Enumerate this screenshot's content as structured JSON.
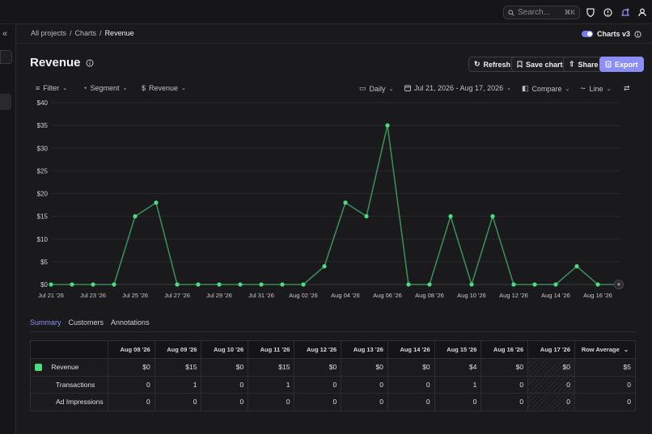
{
  "topbar": {
    "search_placeholder": "Search...",
    "search_shortcut": "⌘K"
  },
  "breadcrumb": {
    "items": [
      "All projects",
      "/",
      "Charts",
      "/"
    ],
    "current": "Revenue"
  },
  "version_toggle": {
    "label": "Charts v3",
    "on": true
  },
  "page": {
    "title": "Revenue"
  },
  "actions": {
    "refresh": "Refresh",
    "save": "Save chart",
    "share": "Share",
    "export": "Export"
  },
  "controls": {
    "filter": "Filter",
    "segment": "Segment",
    "metric": "Revenue",
    "interval": "Daily",
    "date_range": "Jul 21, 2026 - Aug 17, 2026",
    "compare": "Compare",
    "chart_type": "Line"
  },
  "colors": {
    "accent": "#8b8ff5",
    "series": "#4ade80",
    "line": "#3b8a5a"
  },
  "chart_data": {
    "type": "line",
    "x": [
      "Jul 21 '26",
      "Jul 22 '26",
      "Jul 23 '26",
      "Jul 24 '26",
      "Jul 25 '26",
      "Jul 26 '26",
      "Jul 27 '26",
      "Jul 28 '26",
      "Jul 29 '26",
      "Jul 30 '26",
      "Jul 31 '26",
      "Aug 01 '26",
      "Aug 02 '26",
      "Aug 03 '26",
      "Aug 04 '26",
      "Aug 05 '26",
      "Aug 06 '26",
      "Aug 07 '26",
      "Aug 08 '26",
      "Aug 09 '26",
      "Aug 10 '26",
      "Aug 11 '26",
      "Aug 12 '26",
      "Aug 13 '26",
      "Aug 14 '26",
      "Aug 15 '26",
      "Aug 16 '26",
      "Aug 17 '26"
    ],
    "x_tick_labels": [
      "Jul 21 '26",
      "Jul 23 '26",
      "Jul 25 '26",
      "Jul 27 '26",
      "Jul 29 '26",
      "Jul 31 '26",
      "Aug 02 '26",
      "Aug 04 '26",
      "Aug 06 '26",
      "Aug 08 '26",
      "Aug 10 '26",
      "Aug 12 '26",
      "Aug 14 '26",
      "Aug 16 '26"
    ],
    "series": [
      {
        "name": "Revenue",
        "values": [
          0,
          0,
          0,
          0,
          15,
          18,
          0,
          0,
          0,
          0,
          0,
          0,
          0,
          4,
          18,
          15,
          35,
          0,
          0,
          15,
          0,
          15,
          0,
          0,
          0,
          4,
          0,
          0
        ]
      }
    ],
    "y_ticks": [
      "$0",
      "$5",
      "$10",
      "$15",
      "$20",
      "$25",
      "$30",
      "$35",
      "$40"
    ],
    "ylim": [
      0,
      40
    ],
    "grid": true
  },
  "tabs": [
    "Summary",
    "Customers",
    "Annotations"
  ],
  "table": {
    "columns": [
      "Aug 08 '26",
      "Aug 09 '26",
      "Aug 10 '26",
      "Aug 11 '26",
      "Aug 12 '26",
      "Aug 13 '26",
      "Aug 14 '26",
      "Aug 15 '26",
      "Aug 16 '26",
      "Aug 17 '26"
    ],
    "last_column": "Row Average",
    "rows": [
      {
        "name": "Revenue",
        "values": [
          "$0",
          "$15",
          "$0",
          "$15",
          "$0",
          "$0",
          "$0",
          "$4",
          "$0",
          "$0"
        ],
        "average": "$5",
        "swatch": true
      },
      {
        "name": "Transactions",
        "values": [
          "0",
          "1",
          "0",
          "1",
          "0",
          "0",
          "0",
          "1",
          "0",
          "0"
        ],
        "average": "0"
      },
      {
        "name": "Ad Impressions",
        "values": [
          "0",
          "0",
          "0",
          "0",
          "0",
          "0",
          "0",
          "0",
          "0",
          "0"
        ],
        "average": "0"
      }
    ]
  }
}
